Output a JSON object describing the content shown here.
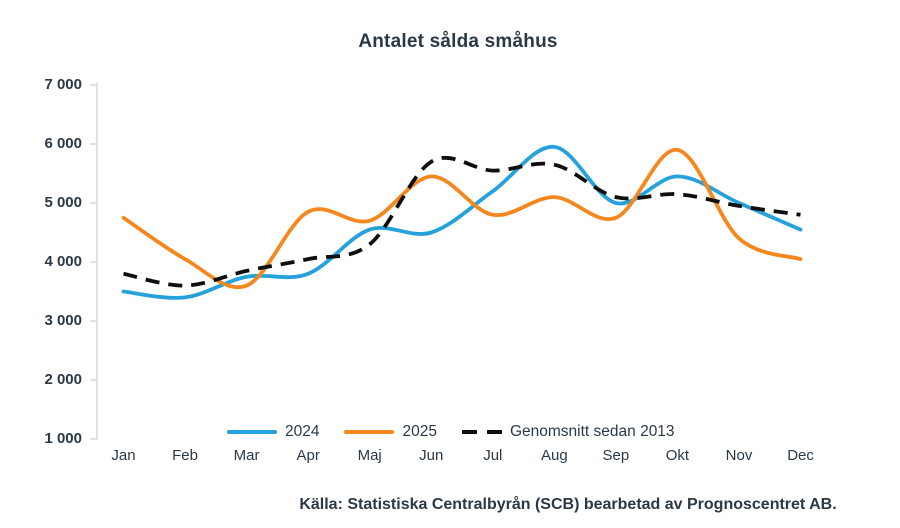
{
  "title": "Antalet sålda småhus",
  "source": "Källa: Statistiska Centralbyrån (SCB) bearbetad av Prognoscentret AB.",
  "colors": {
    "blue": "#25A2DC",
    "orange": "#F6871D",
    "black": "#0F0F0F",
    "text": "#2B3947",
    "axis": "#D9D9D9"
  },
  "chart_data": {
    "type": "line",
    "categories": [
      "Jan",
      "Feb",
      "Mar",
      "Apr",
      "Maj",
      "Jun",
      "Jul",
      "Aug",
      "Sep",
      "Okt",
      "Nov",
      "Dec"
    ],
    "series": [
      {
        "name": "2024",
        "color_key": "blue",
        "style": "solid",
        "values": [
          3500,
          3400,
          3750,
          3800,
          4550,
          4500,
          5200,
          5950,
          5000,
          5450,
          5000,
          4550
        ]
      },
      {
        "name": "2025",
        "color_key": "orange",
        "style": "solid",
        "values": [
          4750,
          4050,
          3600,
          4850,
          4700,
          5450,
          4800,
          5100,
          4750,
          5900,
          4400,
          4050
        ]
      },
      {
        "name": "Genomsnitt sedan 2013",
        "color_key": "black",
        "style": "dashed",
        "values": [
          3800,
          3600,
          3850,
          4050,
          4300,
          5700,
          5550,
          5650,
          5100,
          5150,
          4950,
          4800
        ]
      }
    ],
    "ylim": [
      1000,
      7000
    ],
    "ytick_step": 1000,
    "ytick_labels_top_to_bottom": [
      "7 000",
      "6 000",
      "5 000",
      "4 000",
      "3 000",
      "2 000",
      "1 000"
    ],
    "grid": false,
    "legend_position": "bottom"
  }
}
